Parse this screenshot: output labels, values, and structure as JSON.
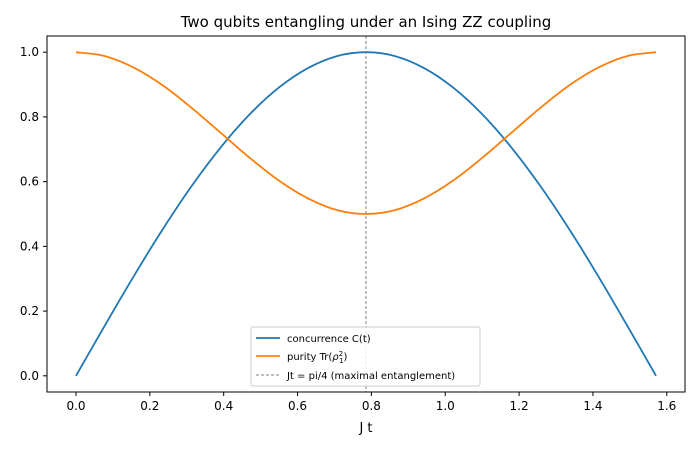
{
  "chart_data": {
    "type": "line",
    "title": "Two qubits entangling under an Ising ZZ coupling",
    "xlabel": "J t",
    "ylabel": "",
    "xlim": [
      -0.0785,
      1.6493
    ],
    "ylim": [
      -0.05,
      1.05
    ],
    "xticks": [
      0.0,
      0.2,
      0.4,
      0.6,
      0.8,
      1.0,
      1.2,
      1.4,
      1.6
    ],
    "xtick_labels": [
      "0.0",
      "0.2",
      "0.4",
      "0.6",
      "0.8",
      "1.0",
      "1.2",
      "1.4",
      "1.6"
    ],
    "yticks": [
      0.0,
      0.2,
      0.4,
      0.6,
      0.8,
      1.0
    ],
    "ytick_labels": [
      "0.0",
      "0.2",
      "0.4",
      "0.6",
      "0.8",
      "1.0"
    ],
    "grid": false,
    "legend_position": "lower-center",
    "x": [
      0.0,
      0.0785,
      0.1571,
      0.2356,
      0.3142,
      0.3927,
      0.4712,
      0.5498,
      0.6283,
      0.7069,
      0.7854,
      0.8639,
      0.9425,
      1.021,
      1.0996,
      1.1781,
      1.2566,
      1.3352,
      1.4137,
      1.4923,
      1.5708
    ],
    "series": [
      {
        "name": "concurrence C(t)",
        "color": "#1f77b4",
        "values": [
          0.0,
          0.156,
          0.309,
          0.454,
          0.588,
          0.707,
          0.809,
          0.891,
          0.951,
          0.988,
          1.0,
          0.988,
          0.951,
          0.891,
          0.809,
          0.707,
          0.588,
          0.454,
          0.309,
          0.156,
          0.0
        ]
      },
      {
        "name_prefix": "purity Tr(",
        "name_symbol": "ρ",
        "name_sup": "2",
        "name_sub": "1",
        "name_suffix": ")",
        "color": "#ff7f0e",
        "values": [
          1.0,
          0.988,
          0.952,
          0.897,
          0.827,
          0.75,
          0.673,
          0.603,
          0.548,
          0.512,
          0.5,
          0.512,
          0.548,
          0.603,
          0.673,
          0.75,
          0.827,
          0.897,
          0.952,
          0.988,
          1.0
        ]
      }
    ],
    "annotations": [
      {
        "type": "vline",
        "x": 0.7854,
        "label": "Jt = pi/4 (maximal entanglement)",
        "color": "#808080",
        "style": "dashed"
      }
    ]
  }
}
